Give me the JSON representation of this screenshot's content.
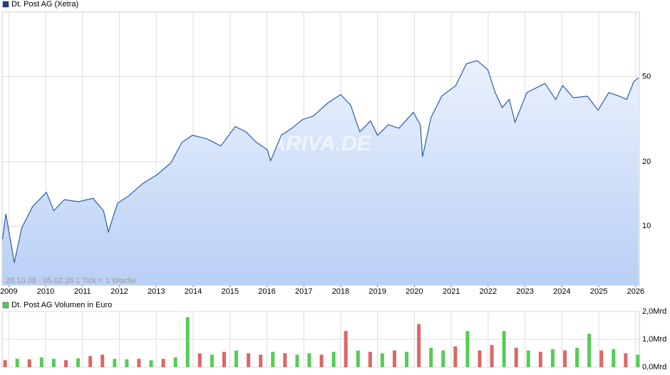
{
  "chart_data": [
    {
      "type": "line",
      "title": "Dt. Post AG (Xetra)",
      "legend_color": "#1f3f8f",
      "color": "#2a5db0",
      "annotation": "28.10.08 - 05.02.26   1 Tick = 1 Woche",
      "watermark": "ARIVA.DE",
      "x": [
        2008.83,
        2008.92,
        2009.15,
        2009.35,
        2009.64,
        2010.02,
        2010.22,
        2010.51,
        2010.89,
        2011.28,
        2011.57,
        2011.7,
        2011.95,
        2012.24,
        2012.63,
        2013.02,
        2013.4,
        2013.69,
        2013.98,
        2014.37,
        2014.75,
        2015.14,
        2015.43,
        2015.72,
        2016.01,
        2016.1,
        2016.39,
        2016.68,
        2016.97,
        2017.26,
        2017.65,
        2018.0,
        2018.27,
        2018.52,
        2018.81,
        2019.0,
        2019.29,
        2019.58,
        2019.97,
        2020.16,
        2020.22,
        2020.45,
        2020.74,
        2021.12,
        2021.41,
        2021.7,
        2021.99,
        2022.19,
        2022.38,
        2022.57,
        2022.73,
        2023.05,
        2023.54,
        2023.83,
        2024.02,
        2024.31,
        2024.69,
        2024.98,
        2025.27,
        2025.56,
        2025.76,
        2025.95,
        2026.08
      ],
      "values": [
        8.7,
        11.4,
        6.75,
        9.8,
        12.3,
        14.4,
        11.8,
        13.3,
        13.0,
        13.5,
        11.8,
        9.4,
        12.8,
        13.8,
        15.8,
        17.4,
        19.8,
        24.6,
        26.6,
        25.6,
        23.7,
        29.2,
        27.6,
        24.6,
        22.8,
        20.2,
        26.6,
        28.7,
        31.5,
        32.7,
        37.6,
        41.2,
        36.8,
        27.6,
        31.0,
        26.6,
        29.8,
        28.7,
        34.0,
        29.8,
        21.1,
        32.2,
        40.5,
        45.4,
        57.4,
        59.3,
        53.8,
        42.1,
        35.8,
        39.1,
        30.6,
        42.1,
        46.4,
        39.1,
        45.4,
        39.8,
        40.5,
        34.8,
        42.1,
        40.5,
        39.1,
        47.4,
        49.3
      ],
      "log_scale": true,
      "ylim": [
        5.3,
        100
      ],
      "yticks": [
        10,
        20,
        50
      ],
      "xlim": [
        2008.82,
        2026.1
      ],
      "xticks": [
        2009,
        2010,
        2011,
        2012,
        2013,
        2014,
        2015,
        2016,
        2017,
        2018,
        2019,
        2020,
        2021,
        2022,
        2023,
        2024,
        2025,
        2026
      ]
    },
    {
      "type": "bar",
      "title": "Dt. Post AG Volumen in Euro",
      "legend_color": "#5cc45c",
      "x": [
        2008.9,
        2009.23,
        2009.56,
        2009.89,
        2010.22,
        2010.55,
        2010.88,
        2011.21,
        2011.54,
        2011.87,
        2012.2,
        2012.53,
        2012.86,
        2013.19,
        2013.52,
        2013.85,
        2014.18,
        2014.51,
        2014.84,
        2015.17,
        2015.5,
        2015.83,
        2016.16,
        2016.49,
        2016.82,
        2017.15,
        2017.48,
        2017.81,
        2018.14,
        2018.47,
        2018.8,
        2019.13,
        2019.46,
        2019.79,
        2020.12,
        2020.45,
        2020.78,
        2021.11,
        2021.44,
        2021.77,
        2022.1,
        2022.43,
        2022.76,
        2023.09,
        2023.42,
        2023.75,
        2024.08,
        2024.41,
        2024.74,
        2025.07,
        2025.4,
        2025.73,
        2026.06
      ],
      "values": [
        0.25,
        0.3,
        0.28,
        0.35,
        0.3,
        0.25,
        0.32,
        0.4,
        0.45,
        0.3,
        0.28,
        0.3,
        0.25,
        0.3,
        0.35,
        1.8,
        0.5,
        0.45,
        0.55,
        0.6,
        0.5,
        0.45,
        0.55,
        0.5,
        0.45,
        0.5,
        0.45,
        0.55,
        1.3,
        0.6,
        0.55,
        0.5,
        0.6,
        0.55,
        1.55,
        0.7,
        0.6,
        0.75,
        1.3,
        0.6,
        0.8,
        1.3,
        0.7,
        0.6,
        0.55,
        0.65,
        0.6,
        0.7,
        1.2,
        0.6,
        0.65,
        0.5,
        0.45
      ],
      "colors": [
        "#d66",
        "#5c5",
        "#d66",
        "#5c5",
        "#5c5",
        "#d66",
        "#5c5",
        "#d66",
        "#d66",
        "#5c5",
        "#5c5",
        "#d66",
        "#5c5",
        "#d66",
        "#5c5",
        "#5c5",
        "#d66",
        "#5c5",
        "#d66",
        "#5c5",
        "#d66",
        "#d66",
        "#5c5",
        "#d66",
        "#5c5",
        "#5c5",
        "#d66",
        "#5c5",
        "#d66",
        "#5c5",
        "#d66",
        "#5c5",
        "#d66",
        "#5c5",
        "#d66",
        "#5c5",
        "#5c5",
        "#d66",
        "#5c5",
        "#d66",
        "#d66",
        "#5c5",
        "#d66",
        "#5c5",
        "#d66",
        "#5c5",
        "#d66",
        "#5c5",
        "#5c5",
        "#d66",
        "#5c5",
        "#d66",
        "#5c5"
      ],
      "ylim": [
        0,
        2
      ],
      "yticks": [
        {
          "value": 0,
          "label": "0,0Mrd"
        },
        {
          "value": 1,
          "label": "1,0Mrd"
        },
        {
          "value": 2,
          "label": "2,0Mrd"
        }
      ]
    }
  ]
}
